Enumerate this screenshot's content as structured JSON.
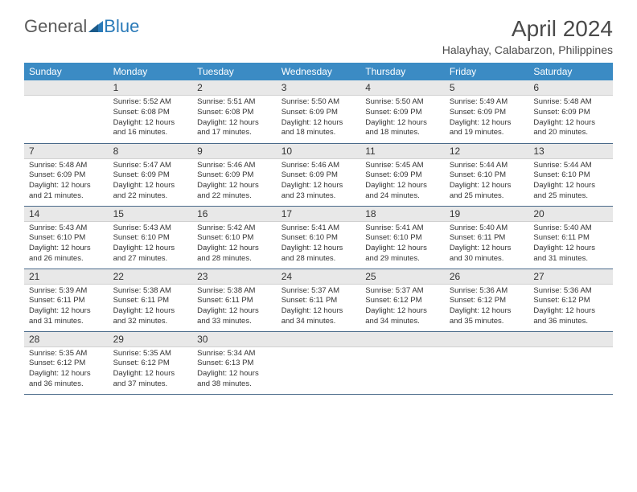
{
  "logo": {
    "text1": "General",
    "text2": "Blue"
  },
  "title": "April 2024",
  "subtitle": "Halayhay, Calabarzon, Philippines",
  "colors": {
    "header_bg": "#3b8bc4",
    "header_text": "#ffffff",
    "daynum_bg": "#e8e8e8",
    "row_border": "#4a6a8a",
    "text": "#333333",
    "logo_gray": "#5a5a5a",
    "logo_blue": "#2a7ab8"
  },
  "weekdays": [
    "Sunday",
    "Monday",
    "Tuesday",
    "Wednesday",
    "Thursday",
    "Friday",
    "Saturday"
  ],
  "weeks": [
    [
      {
        "blank": true
      },
      {
        "n": "1",
        "sunrise": "5:52 AM",
        "sunset": "6:08 PM",
        "daylight": "12 hours and 16 minutes."
      },
      {
        "n": "2",
        "sunrise": "5:51 AM",
        "sunset": "6:08 PM",
        "daylight": "12 hours and 17 minutes."
      },
      {
        "n": "3",
        "sunrise": "5:50 AM",
        "sunset": "6:09 PM",
        "daylight": "12 hours and 18 minutes."
      },
      {
        "n": "4",
        "sunrise": "5:50 AM",
        "sunset": "6:09 PM",
        "daylight": "12 hours and 18 minutes."
      },
      {
        "n": "5",
        "sunrise": "5:49 AM",
        "sunset": "6:09 PM",
        "daylight": "12 hours and 19 minutes."
      },
      {
        "n": "6",
        "sunrise": "5:48 AM",
        "sunset": "6:09 PM",
        "daylight": "12 hours and 20 minutes."
      }
    ],
    [
      {
        "n": "7",
        "sunrise": "5:48 AM",
        "sunset": "6:09 PM",
        "daylight": "12 hours and 21 minutes."
      },
      {
        "n": "8",
        "sunrise": "5:47 AM",
        "sunset": "6:09 PM",
        "daylight": "12 hours and 22 minutes."
      },
      {
        "n": "9",
        "sunrise": "5:46 AM",
        "sunset": "6:09 PM",
        "daylight": "12 hours and 22 minutes."
      },
      {
        "n": "10",
        "sunrise": "5:46 AM",
        "sunset": "6:09 PM",
        "daylight": "12 hours and 23 minutes."
      },
      {
        "n": "11",
        "sunrise": "5:45 AM",
        "sunset": "6:09 PM",
        "daylight": "12 hours and 24 minutes."
      },
      {
        "n": "12",
        "sunrise": "5:44 AM",
        "sunset": "6:10 PM",
        "daylight": "12 hours and 25 minutes."
      },
      {
        "n": "13",
        "sunrise": "5:44 AM",
        "sunset": "6:10 PM",
        "daylight": "12 hours and 25 minutes."
      }
    ],
    [
      {
        "n": "14",
        "sunrise": "5:43 AM",
        "sunset": "6:10 PM",
        "daylight": "12 hours and 26 minutes."
      },
      {
        "n": "15",
        "sunrise": "5:43 AM",
        "sunset": "6:10 PM",
        "daylight": "12 hours and 27 minutes."
      },
      {
        "n": "16",
        "sunrise": "5:42 AM",
        "sunset": "6:10 PM",
        "daylight": "12 hours and 28 minutes."
      },
      {
        "n": "17",
        "sunrise": "5:41 AM",
        "sunset": "6:10 PM",
        "daylight": "12 hours and 28 minutes."
      },
      {
        "n": "18",
        "sunrise": "5:41 AM",
        "sunset": "6:10 PM",
        "daylight": "12 hours and 29 minutes."
      },
      {
        "n": "19",
        "sunrise": "5:40 AM",
        "sunset": "6:11 PM",
        "daylight": "12 hours and 30 minutes."
      },
      {
        "n": "20",
        "sunrise": "5:40 AM",
        "sunset": "6:11 PM",
        "daylight": "12 hours and 31 minutes."
      }
    ],
    [
      {
        "n": "21",
        "sunrise": "5:39 AM",
        "sunset": "6:11 PM",
        "daylight": "12 hours and 31 minutes."
      },
      {
        "n": "22",
        "sunrise": "5:38 AM",
        "sunset": "6:11 PM",
        "daylight": "12 hours and 32 minutes."
      },
      {
        "n": "23",
        "sunrise": "5:38 AM",
        "sunset": "6:11 PM",
        "daylight": "12 hours and 33 minutes."
      },
      {
        "n": "24",
        "sunrise": "5:37 AM",
        "sunset": "6:11 PM",
        "daylight": "12 hours and 34 minutes."
      },
      {
        "n": "25",
        "sunrise": "5:37 AM",
        "sunset": "6:12 PM",
        "daylight": "12 hours and 34 minutes."
      },
      {
        "n": "26",
        "sunrise": "5:36 AM",
        "sunset": "6:12 PM",
        "daylight": "12 hours and 35 minutes."
      },
      {
        "n": "27",
        "sunrise": "5:36 AM",
        "sunset": "6:12 PM",
        "daylight": "12 hours and 36 minutes."
      }
    ],
    [
      {
        "n": "28",
        "sunrise": "5:35 AM",
        "sunset": "6:12 PM",
        "daylight": "12 hours and 36 minutes."
      },
      {
        "n": "29",
        "sunrise": "5:35 AM",
        "sunset": "6:12 PM",
        "daylight": "12 hours and 37 minutes."
      },
      {
        "n": "30",
        "sunrise": "5:34 AM",
        "sunset": "6:13 PM",
        "daylight": "12 hours and 38 minutes."
      },
      {
        "blank": true
      },
      {
        "blank": true
      },
      {
        "blank": true
      },
      {
        "blank": true
      }
    ]
  ]
}
